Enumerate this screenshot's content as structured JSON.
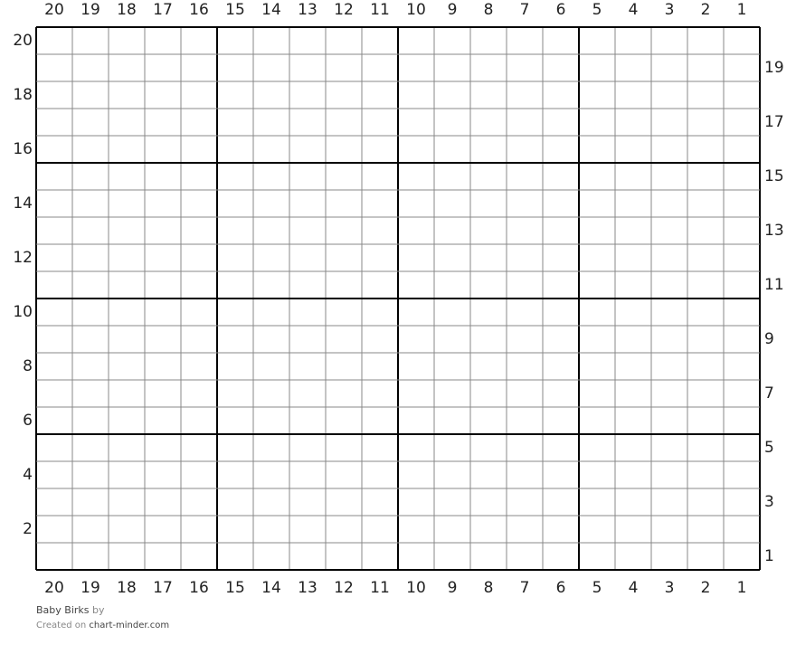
{
  "chart_data": {
    "type": "table",
    "columns": 20,
    "rows": 20,
    "major_grid_every": 5,
    "column_labels": [
      "20",
      "19",
      "18",
      "17",
      "16",
      "15",
      "14",
      "13",
      "12",
      "11",
      "10",
      "9",
      "8",
      "7",
      "6",
      "5",
      "4",
      "3",
      "2",
      "1"
    ],
    "left_row_labels": [
      "20",
      "18",
      "16",
      "14",
      "12",
      "10",
      "8",
      "6",
      "4",
      "2"
    ],
    "right_row_labels": [
      "19",
      "17",
      "15",
      "13",
      "11",
      "9",
      "7",
      "5",
      "3",
      "1"
    ],
    "cells": "empty",
    "colors": {
      "minor_grid": "#888888",
      "major_grid": "#000000",
      "background": "#ffffff"
    }
  },
  "footer": {
    "title": "Baby Birks",
    "by": "by",
    "created_on": "Created on",
    "site": "chart-minder.com"
  }
}
